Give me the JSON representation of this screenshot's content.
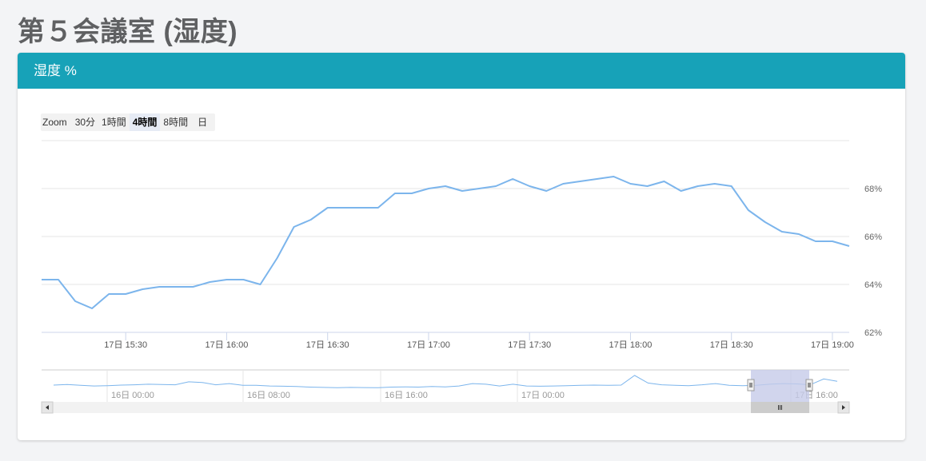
{
  "page": {
    "title": "第５会議室 (湿度)"
  },
  "card": {
    "header": "湿度 %"
  },
  "zoom": {
    "label": "Zoom",
    "buttons": [
      "30分",
      "1時間",
      "4時間",
      "8時間",
      "日"
    ],
    "active": "4時間"
  },
  "colors": {
    "header_bg": "#17a2b8",
    "series": "#7cb5ec",
    "navigator_mask": "#c5cbe9"
  },
  "chart_data": {
    "type": "line",
    "title": "",
    "xlabel": "",
    "ylabel": "",
    "x_ticks": [
      "17日 15:30",
      "17日 16:00",
      "17日 16:30",
      "17日 17:00",
      "17日 17:30",
      "17日 18:00",
      "17日 18:30",
      "17日 19:00"
    ],
    "y_ticks": [
      "62%",
      "64%",
      "66%",
      "68%"
    ],
    "ylim": [
      62,
      70
    ],
    "xlim": [
      "17日 15:05",
      "17日 19:05"
    ],
    "grid": true,
    "series": [
      {
        "x": [
          "15:05",
          "15:10",
          "15:15",
          "15:20",
          "15:25",
          "15:30",
          "15:35",
          "15:40",
          "15:45",
          "15:50",
          "15:55",
          "16:00",
          "16:05",
          "16:10",
          "16:15",
          "16:20",
          "16:25",
          "16:30",
          "16:35",
          "16:40",
          "16:45",
          "16:50",
          "16:55",
          "17:00",
          "17:05",
          "17:10",
          "17:15",
          "17:20",
          "17:25",
          "17:30",
          "17:35",
          "17:40",
          "17:45",
          "17:50",
          "17:55",
          "18:00",
          "18:05",
          "18:10",
          "18:15",
          "18:20",
          "18:25",
          "18:30",
          "18:35",
          "18:40",
          "18:45",
          "18:50",
          "18:55",
          "19:00",
          "19:05"
        ],
        "values": [
          64.2,
          64.2,
          63.3,
          63.0,
          63.6,
          63.6,
          63.8,
          63.9,
          63.9,
          63.9,
          64.1,
          64.2,
          64.2,
          64.0,
          65.1,
          66.4,
          66.7,
          67.2,
          67.2,
          67.2,
          67.2,
          67.8,
          67.8,
          68.0,
          68.1,
          67.9,
          68.0,
          68.1,
          68.4,
          68.1,
          67.9,
          68.2,
          68.3,
          68.4,
          68.5,
          68.2,
          68.1,
          68.3,
          67.9,
          68.1,
          68.2,
          68.1,
          67.1,
          66.6,
          66.2,
          66.1,
          65.8,
          65.8,
          65.6
        ]
      }
    ],
    "navigator": {
      "x_ticks": [
        "16日 00:00",
        "16日 08:00",
        "16日 16:00",
        "17日 00:00",
        "17日 16:00"
      ],
      "values": [
        0.55,
        0.65,
        0.5,
        0.4,
        0.45,
        0.55,
        0.6,
        0.7,
        0.65,
        0.6,
        1.1,
        1.0,
        0.6,
        0.8,
        0.5,
        0.5,
        0.4,
        0.35,
        0.3,
        0.2,
        0.15,
        0.1,
        0.15,
        0.12,
        0.1,
        0.2,
        0.25,
        0.2,
        0.3,
        0.25,
        0.4,
        0.8,
        0.7,
        0.4,
        0.7,
        0.4,
        0.35,
        0.4,
        0.45,
        0.5,
        0.55,
        0.5,
        0.55,
        2.2,
        0.9,
        0.6,
        0.5,
        0.45,
        0.6,
        0.8,
        0.5,
        0.45,
        0.5,
        0.7,
        0.8,
        0.75,
        0.6,
        1.6,
        1.2
      ],
      "selected_range": [
        "17日 15:05",
        "17日 19:05"
      ]
    }
  }
}
